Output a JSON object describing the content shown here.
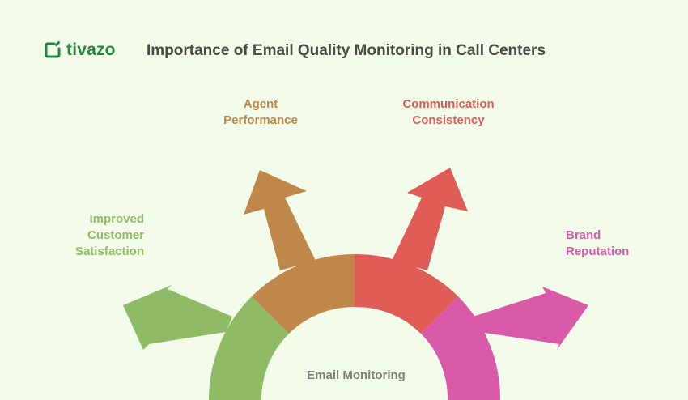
{
  "brand": {
    "name": "tivazo",
    "color": "#1f8a3c"
  },
  "title": "Importance of Email Quality Monitoring in Call Centers",
  "center": {
    "label": "Email Monitoring"
  },
  "branches": {
    "customer": {
      "label_lines": [
        "Improved",
        "Customer",
        "Satisfaction"
      ],
      "color": "#8fbb67"
    },
    "agent": {
      "label_lines": [
        "Agent",
        "Performance"
      ],
      "color": "#c0874a"
    },
    "comm": {
      "label_lines": [
        "Communication",
        "Consistency"
      ],
      "color": "#df5c57"
    },
    "brand": {
      "label_lines": [
        "Brand",
        "Reputation"
      ],
      "color": "#d95aa8"
    }
  },
  "colors": {
    "background": "#f3fcea",
    "title": "#4a4a4a",
    "center_text": "#7d7d7d"
  }
}
